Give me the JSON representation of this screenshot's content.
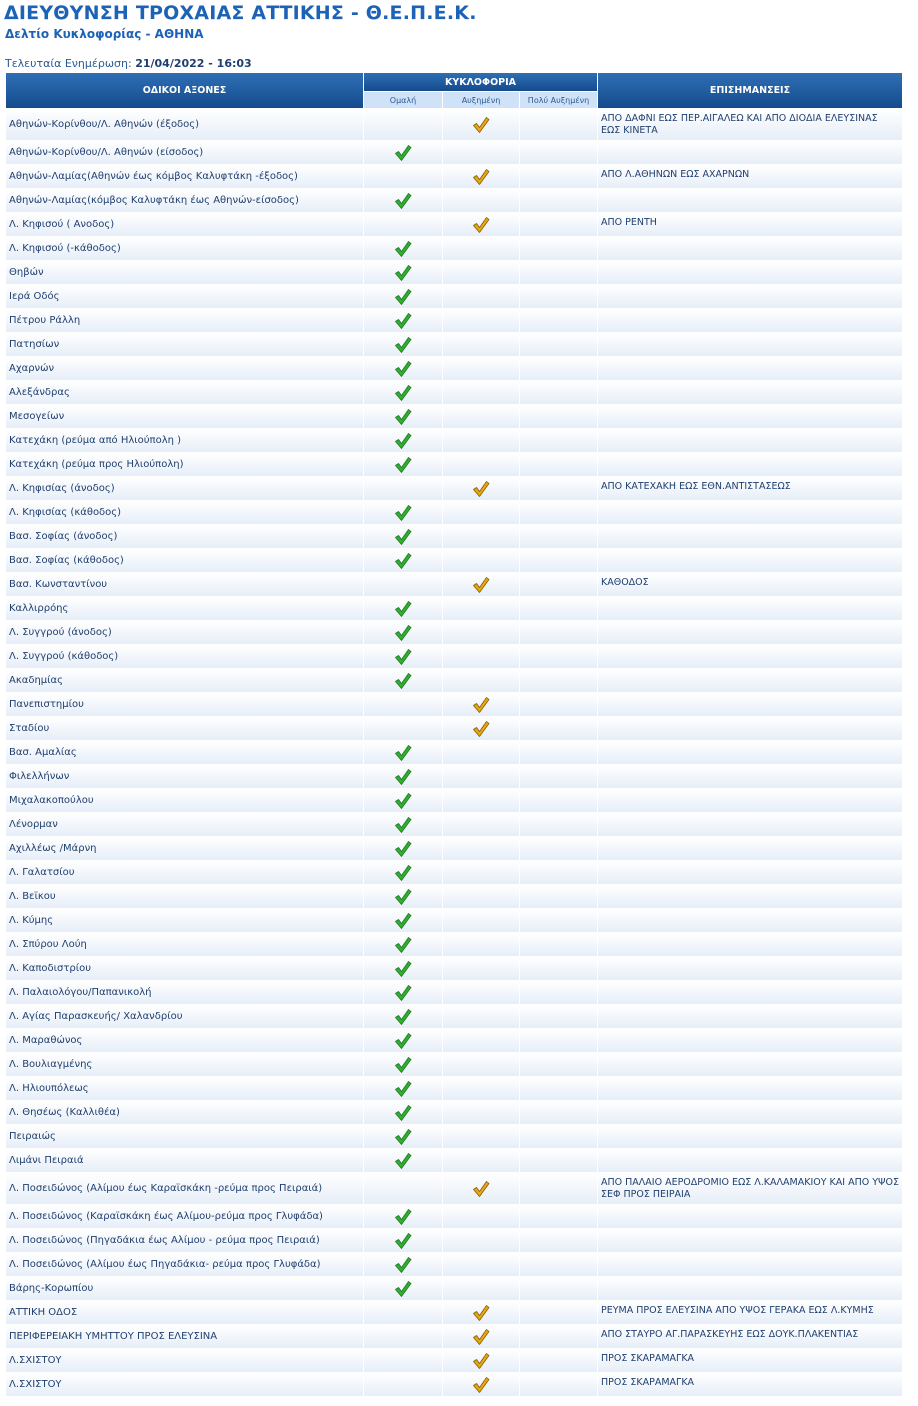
{
  "header": {
    "title": "ΔΙΕΥΘΥΝΣΗ ΤΡΟΧΑΙΑΣ ΑΤΤΙΚΗΣ - Θ.Ε.Π.Ε.Κ.",
    "subtitle": "Δελτίο Κυκλοφορίας - ΑΘΗΝΑ",
    "update_label": "Τελευταία Ενημέρωση:",
    "update_value": "21/04/2022 - 16:03"
  },
  "table": {
    "columns": {
      "roads": "ΟΔΙΚΟΙ ΑΞΟΝΕΣ",
      "traffic": "ΚΥΚΛΟΦΟΡΙΑ",
      "levels": [
        "Ομαλή",
        "Αυξημένη",
        "Πολύ Αυξημένη"
      ],
      "notes": "ΕΠΙΣΗΜΑΝΣΕΙΣ"
    },
    "level_colors": [
      "#2fae2f",
      "#e6a817",
      "#d03030"
    ],
    "rows": [
      {
        "road": "Αθηνών-Κορίνθου/Λ. Αθηνών (έξοδος)",
        "level": 1,
        "note": "ΑΠΟ ΔΑΦΝΙ ΕΩΣ ΠΕΡ.ΑΙΓΑΛΕΩ ΚΑΙ ΑΠΟ ΔΙΟΔΙΑ ΕΛΕΥΣΙΝΑΣ ΕΩΣ ΚΙΝΕΤΑ"
      },
      {
        "road": "Αθηνών-Κορίνθου/Λ. Αθηνών (είσοδος)",
        "level": 0
      },
      {
        "road": "Αθηνών-Λαμίας(Αθηνών έως κόμβος Καλυφτάκη -έξοδος)",
        "level": 1,
        "note": "ΑΠΟ Λ.ΑΘΗΝΩΝ ΕΩΣ ΑΧΑΡΝΩΝ"
      },
      {
        "road": "Αθηνών-Λαμίας(κόμβος Καλυφτάκη έως Αθηνών-είσοδος)",
        "level": 0
      },
      {
        "road": "Λ. Κηφισού ( Ανοδος)",
        "level": 1,
        "note": "ΑΠΟ ΡΕΝΤΗ"
      },
      {
        "road": "Λ. Κηφισού (-κάθοδος)",
        "level": 0
      },
      {
        "road": "Θηβών",
        "level": 0
      },
      {
        "road": "Ιερά Οδός",
        "level": 0
      },
      {
        "road": "Πέτρου Ράλλη",
        "level": 0
      },
      {
        "road": "Πατησίων",
        "level": 0
      },
      {
        "road": "Αχαρνών",
        "level": 0
      },
      {
        "road": "Αλεξάνδρας",
        "level": 0
      },
      {
        "road": "Μεσογείων",
        "level": 0
      },
      {
        "road": "Κατεχάκη (ρεύμα από Ηλιούπολη )",
        "level": 0
      },
      {
        "road": "Κατεχάκη (ρεύμα προς Ηλιούπολη)",
        "level": 0
      },
      {
        "road": "Λ. Κηφισίας (άνοδος)",
        "level": 1,
        "note": "ΑΠΟ ΚΑΤΕΧΑΚΗ ΕΩΣ ΕΘΝ.ΑΝΤΙΣΤΑΣΕΩΣ"
      },
      {
        "road": "Λ. Κηφισίας (κάθοδος)",
        "level": 0
      },
      {
        "road": "Βασ. Σοφίας (άνοδος)",
        "level": 0
      },
      {
        "road": "Βασ. Σοφίας (κάθοδος)",
        "level": 0
      },
      {
        "road": "Βασ. Κωνσταντίνου",
        "level": 1,
        "note": "ΚΑΘΟΔΟΣ"
      },
      {
        "road": "Καλλιρρόης",
        "level": 0
      },
      {
        "road": "Λ. Συγγρού (άνοδος)",
        "level": 0
      },
      {
        "road": "Λ. Συγγρού (κάθοδος)",
        "level": 0
      },
      {
        "road": "Ακαδημίας",
        "level": 0
      },
      {
        "road": "Πανεπιστημίου",
        "level": 1
      },
      {
        "road": "Σταδίου",
        "level": 1
      },
      {
        "road": "Βασ. Αμαλίας",
        "level": 0
      },
      {
        "road": "Φιλελλήνων",
        "level": 0
      },
      {
        "road": "Μιχαλακοπούλου",
        "level": 0
      },
      {
        "road": "Λένορμαν",
        "level": 0
      },
      {
        "road": "Αχιλλέως /Μάρνη",
        "level": 0
      },
      {
        "road": "Λ. Γαλατσίου",
        "level": 0
      },
      {
        "road": "Λ. Βεϊκου",
        "level": 0
      },
      {
        "road": "Λ. Κύμης",
        "level": 0
      },
      {
        "road": "Λ. Σπύρου Λούη",
        "level": 0
      },
      {
        "road": "Λ. Καποδιστρίου",
        "level": 0
      },
      {
        "road": "Λ. Παλαιολόγου/Παπανικολή",
        "level": 0
      },
      {
        "road": "Λ. Αγίας Παρασκευής/ Χαλανδρίου",
        "level": 0
      },
      {
        "road": "Λ. Μαραθώνος",
        "level": 0
      },
      {
        "road": "Λ. Βουλιαγμένης",
        "level": 0
      },
      {
        "road": "Λ. Ηλιουπόλεως",
        "level": 0
      },
      {
        "road": "Λ. Θησέως (Καλλιθέα)",
        "level": 0
      },
      {
        "road": "Πειραιώς",
        "level": 0
      },
      {
        "road": "Λιμάνι Πειραιά",
        "level": 0
      },
      {
        "road": "Λ. Ποσειδώνος (Αλίμου έως Καραϊσκάκη -ρεύμα προς Πειραιά)",
        "level": 1,
        "note": "ΑΠΟ ΠΑΛΑΙΟ ΑΕΡΟΔΡΟΜΙΟ ΕΩΣ Λ.ΚΑΛΑΜΑΚΙΟΥ ΚΑΙ ΑΠΟ ΥΨΟΣ ΣΕΦ ΠΡΟΣ ΠΕΙΡΑΙΑ"
      },
      {
        "road": "Λ. Ποσειδώνος (Καραϊσκάκη έως Αλίμου-ρεύμα προς Γλυφάδα)",
        "level": 0
      },
      {
        "road": "Λ. Ποσειδώνος (Πηγαδάκια έως Αλίμου - ρεύμα προς Πειραιά)",
        "level": 0
      },
      {
        "road": "Λ. Ποσειδώνος (Αλίμου έως Πηγαδάκια- ρεύμα προς Γλυφάδα)",
        "level": 0
      },
      {
        "road": "Βάρης-Κορωπίου",
        "level": 0
      },
      {
        "road": "ΑΤΤΙΚΗ ΟΔΟΣ",
        "level": 1,
        "note": "ΡΕΥΜΑ ΠΡΟΣ ΕΛΕΥΣΙΝΑ ΑΠΟ ΥΨΟΣ ΓΕΡΑΚΑ ΕΩΣ Λ.ΚΥΜΗΣ"
      },
      {
        "road": "ΠΕΡΙΦΕΡΕΙΑΚΗ ΥΜΗΤΤΟΥ ΠΡΟΣ ΕΛΕΥΣΙΝΑ",
        "level": 1,
        "note": "ΑΠΟ ΣΤΑΥΡΟ ΑΓ.ΠΑΡΑΣΚΕΥΗΣ ΕΩΣ ΔΟΥΚ.ΠΛΑΚΕΝΤΙΑΣ"
      },
      {
        "road": "Λ.ΣΧΙΣΤΟΥ",
        "level": 1,
        "note": "ΠΡΟΣ ΣΚΑΡΑΜΑΓΚΑ"
      },
      {
        "road": "Λ.ΣΧΙΣΤΟΥ",
        "level": 1,
        "note": "ΠΡΟΣ ΣΚΑΡΑΜΑΓΚΑ"
      }
    ]
  }
}
